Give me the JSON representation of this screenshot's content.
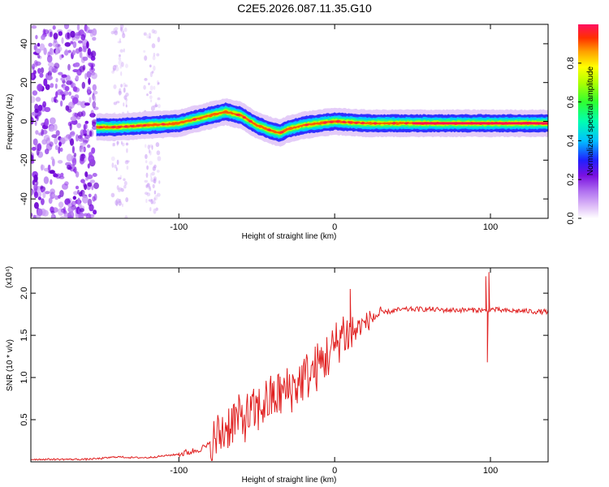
{
  "title": "C2E5.2026.087.11.35.G10",
  "colors": {
    "line": "#e02020",
    "frame": "#000000",
    "background": "#ffffff"
  },
  "chart_data": [
    {
      "type": "heatmap",
      "name": "spectrogram",
      "xlabel": "Height of straight line (km)",
      "ylabel": "Frequency (Hz)",
      "xlim": [
        -195,
        137
      ],
      "ylim": [
        -50,
        50
      ],
      "xticks": [
        -100,
        0,
        100
      ],
      "yticks": [
        -40,
        -20,
        0,
        20,
        40
      ],
      "colorbar": {
        "label": "Normalized spectral amplitude",
        "range": [
          0,
          1
        ],
        "ticks": [
          0.0,
          0.2,
          0.4,
          0.6,
          0.8
        ],
        "tick_labels": [
          "0.0",
          "0.2",
          "0.4",
          "0.6",
          "0.8"
        ]
      },
      "ridge": {
        "x": [
          -153,
          -140,
          -120,
          -100,
          -90,
          -80,
          -70,
          -60,
          -50,
          -40,
          -35,
          -30,
          -20,
          -10,
          0,
          20,
          50,
          80,
          100,
          120,
          137
        ],
        "y": [
          -3,
          -3,
          -2,
          -1,
          1,
          3,
          5,
          3,
          -2,
          -5,
          -6,
          -4,
          -2,
          -1,
          0,
          -1,
          -1,
          -1,
          -1,
          -1,
          -1
        ]
      }
    },
    {
      "type": "line",
      "name": "snr",
      "xlabel": "Height of straight line (km)",
      "ylabel": "SNR (10 * v/v)",
      "scale_label": "(x10⁴)",
      "xlim": [
        -195,
        137
      ],
      "ylim": [
        0,
        2.3
      ],
      "xticks": [
        -100,
        0,
        100
      ],
      "yticks": [
        0.5,
        1.0,
        1.5,
        2.0
      ],
      "ytick_labels": [
        "0.5",
        "1.0",
        "1.5",
        "2.0"
      ],
      "series": [
        {
          "name": "SNR",
          "x": [
            -195,
            -180,
            -160,
            -150,
            -140,
            -130,
            -120,
            -110,
            -100,
            -90,
            -80,
            -75,
            -70,
            -65,
            -60,
            -55,
            -50,
            -45,
            -40,
            -35,
            -30,
            -25,
            -20,
            -15,
            -10,
            -5,
            0,
            5,
            10,
            15,
            20,
            25,
            30,
            35,
            40,
            50,
            60,
            70,
            80,
            90,
            95,
            97,
            99,
            100,
            105,
            110,
            120,
            130,
            137
          ],
          "values": [
            0.03,
            0.03,
            0.03,
            0.04,
            0.06,
            0.05,
            0.05,
            0.07,
            0.09,
            0.13,
            0.2,
            0.3,
            0.4,
            0.5,
            0.5,
            0.55,
            0.6,
            0.7,
            0.75,
            0.8,
            0.85,
            0.9,
            1.0,
            1.05,
            1.15,
            1.25,
            1.35,
            1.55,
            1.5,
            1.6,
            1.65,
            1.72,
            1.76,
            1.78,
            1.8,
            1.81,
            1.81,
            1.8,
            1.8,
            1.8,
            1.8,
            1.78,
            1.8,
            1.81,
            1.8,
            1.79,
            1.79,
            1.78,
            1.78
          ]
        }
      ],
      "spikes": {
        "x": [
          10,
          97,
          98,
          99
        ],
        "values": [
          2.05,
          2.2,
          1.18,
          2.25
        ]
      }
    }
  ]
}
